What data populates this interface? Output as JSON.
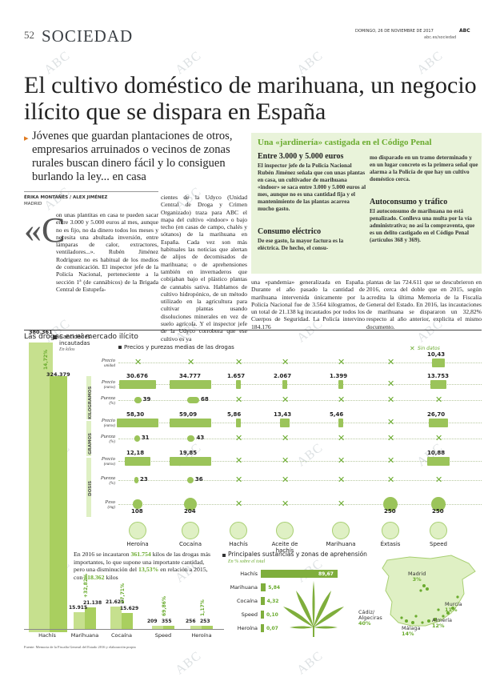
{
  "header": {
    "page_number": "52",
    "section": "SOCIEDAD",
    "date": "DOMINGO, 26 DE NOVIEMBRE DE 2017",
    "brand": "ABC",
    "site": "abc.es/sociedad"
  },
  "headline": "El cultivo doméstico de marihuana, un negocio ilícito que se dispara en España",
  "subhead": "Jóvenes que guardan plantaciones de otros, empresarios arruinados o vecinos de zonas rurales buscan dinero fácil y lo consiguen burlando la ley... en casa",
  "byline": "ÉRIKA MONTAÑÉS / ALEX JIMÉNEZ",
  "location": "MADRID",
  "dropcap_quote": "«C",
  "body": {
    "col1": "on unas plantitas en casa te pueden sacar entre 3.000 y 5.000 euros al mes, aunque no es fijo, no da dinero todos los meses y necesita una abultada inversión, entre lámparas de calor, extractores, ventiladores...». Rubén Jiménez Rodríguez no es habitual de los medios de comunicación. El inspector jefe de la Policía Nacional, perteneciente a la sección 1ª (de cannábicos) de la Brigada Central de Estupefa-",
    "col2": "cientes de la Udyco (Unidad Central de Droga y Crimen Organizado) traza para ABC el mapa del cultivo «indoor» o bajo techo (en casas de campo, chalés y sótanos) de la marihuana en España. Cada vez son más habituales las noticias que alertan de alijos de decomisados de marihuana; o de aprehensiones también en invernaderos que cobijaban bajo el plástico plantas de cannabis sativa. Hablamos de cultivo hidropónico, de un método utilizado en la agricultura para cultivar plantas usando disoluciones minerales en vez de suelo agrícola. Y el inspector jefe de la Udyco corrobora que ese cultivo es ya",
    "col3": "una «pandemia» generalizada en España. Durante el año pasado la cantidad de marihuana intervenida únicamente por la Policía Nacional fue de 3.564 kilogramos, de un total de 21.138 kg incautados por todos los Cuerpos de Seguridad. La Policía intervino 184.176",
    "col4": "plantas de las 724.611 que se descubrieron en 2016, cerca del doble que en 2015, según acredita la última Memoria de la Fiscalía General del Estado. En 2016, las incautaciones de marihuana se dispararon un 32,82% respecto al año anterior, explicita el mismo documento."
  },
  "sidebar": {
    "title": "Una «jardinería» castigada en el Código Penal",
    "h1": "Entre 3.000 y 5.000 euros",
    "p1": "El inspector jefe de la Policía Nacional Rubén Jiménez señala que con unas plantas en casa, un cultivador de marihuana «indoor» se saca entre 3.000 y 5.000 euros al mes, aunque no es una cantidad fija y el mantenimiento de las plantas acarrea mucho gasto.",
    "h2": "Consumo eléctrico",
    "p2": "De ese gasto, la mayor factura es la eléctrica. De hecho, el consu-",
    "p3": "mo disparado en un tramo determinado y en un lugar concreto es la primera señal que alarma a la Policía de que hay un cultivo doméstico cerca.",
    "h3": "Autoconsumo y tráfico",
    "p4": "El autoconsumo de marihuana no está penalizado. Conlleva una multa por la vía administrativa; no así la compraventa, que es un delito castigado en el Código Penal (artículos 368 y 369)."
  },
  "infographic": {
    "title": "Las drogas en el mercado ilícito",
    "legend_seized": "Cantidades incautadas",
    "legend_seized_unit": "En kilos",
    "legend_prices": "Precios y purezas medias de las drogas",
    "legend_nodata": "Sin datos",
    "hashish_total": "380.361",
    "hashish_2016": "324.379",
    "hashish_change": "14,72%",
    "group_labels": [
      "KILOGRAMOS",
      "GRAMOS",
      "DOSIS"
    ],
    "row_labels": [
      {
        "main": "Precio",
        "sub": "unidad"
      },
      {
        "main": "Precio",
        "sub": "(euros)"
      },
      {
        "main": "Pureza",
        "sub": "(%)"
      },
      {
        "main": "Precio",
        "sub": "(euros)"
      },
      {
        "main": "Pureza",
        "sub": "(%)"
      },
      {
        "main": "Precio",
        "sub": "(euros)"
      },
      {
        "main": "Pureza",
        "sub": "(%)"
      },
      {
        "main": "Peso",
        "sub": "(mg)"
      }
    ],
    "drugs": [
      "Heroína",
      "Cocaína",
      "Hachís",
      "Aceite de hachís",
      "Marihuana",
      "Éxtasis",
      "Speed"
    ],
    "values": {
      "unit_price": [
        "",
        "",
        "",
        "",
        "",
        "",
        "10,43"
      ],
      "kg_price": [
        "30.676",
        "34.777",
        "1.657",
        "2.067",
        "1.399",
        "",
        "13.753"
      ],
      "kg_purity": [
        "39",
        "68",
        "",
        "",
        "",
        "",
        ""
      ],
      "g_price": [
        "58,30",
        "59,09",
        "5,86",
        "13,43",
        "5,46",
        "",
        "26,70"
      ],
      "g_purity": [
        "31",
        "43",
        "",
        "",
        "",
        "",
        ""
      ],
      "dose_price": [
        "12,18",
        "19,85",
        "",
        "",
        "",
        "",
        "10,88"
      ],
      "dose_purity": [
        "23",
        "36",
        "",
        "",
        "",
        "",
        ""
      ],
      "dose_weight": [
        "108",
        "204",
        "",
        "",
        "",
        "250",
        "250"
      ]
    },
    "summary_text_1": "En 2016 se incautaron ",
    "summary_highlight_1": "361.754",
    "summary_text_2": " kilos de las drogas más importantes, lo que supone una importante cantidad, pero una disminución del ",
    "summary_highlight_2": "13,53%",
    "summary_text_3": " en relación a 2015, con ",
    "summary_highlight_3": "418.362",
    "summary_text_4": " kilos",
    "bars": [
      {
        "name": "Hachís",
        "v2015": "380.361",
        "v2016": "324.379",
        "pct": "14,72%"
      },
      {
        "name": "Marihuana",
        "v2015": "15.915",
        "v2016": "21.138",
        "pct": "+32,82%"
      },
      {
        "name": "Cocaína",
        "v2015": "21.621",
        "v2016": "15.629",
        "pct": "27,71%"
      },
      {
        "name": "Speed",
        "v2015": "209",
        "v2016": "355",
        "pct": "69,86%"
      },
      {
        "name": "Heroína",
        "v2015": "256",
        "v2016": "253",
        "pct": "1,17%"
      }
    ],
    "substances_title": "Principales sustancias y zonas de aprehensión",
    "substances_subtitle": "En % sobre el total",
    "substances": [
      {
        "name": "Hachís",
        "value": "89,67"
      },
      {
        "name": "Marihuana",
        "value": "5,84"
      },
      {
        "name": "Cocaína",
        "value": "4,32"
      },
      {
        "name": "Speed",
        "value": "0,10"
      },
      {
        "name": "Heroína",
        "value": "0,07"
      }
    ],
    "zones": [
      {
        "name": "Madrid",
        "pct": "3%"
      },
      {
        "name": "Murcia",
        "pct": "11%"
      },
      {
        "name": "Almería",
        "pct": "12%"
      },
      {
        "name": "Málaga",
        "pct": "14%"
      },
      {
        "name": "Cádiz/ Algeciras",
        "pct": "40%"
      }
    ],
    "source": "Fuente: Memoria de la Fiscalía General del Estado 2016 y elaboración propia"
  },
  "watermark": "ABC",
  "colors": {
    "accent": "#6aab2e",
    "light": "#dff0c4",
    "title": "#3a3f44",
    "pill": "#9bc45a"
  }
}
